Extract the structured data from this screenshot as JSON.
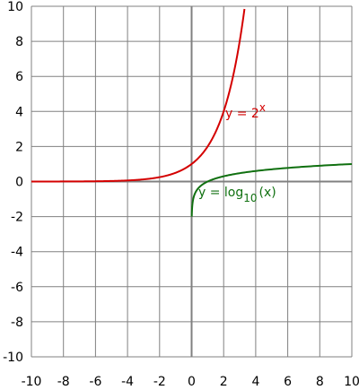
{
  "chart_data": {
    "type": "line",
    "title": "",
    "xlabel": "",
    "ylabel": "",
    "xlim": [
      -10,
      10
    ],
    "ylim": [
      -10,
      10
    ],
    "grid": true,
    "grid_color": "#808080",
    "axis_color": "#808080",
    "x_ticks": [
      -10,
      -8,
      -6,
      -4,
      -2,
      0,
      2,
      4,
      6,
      8,
      10
    ],
    "y_ticks": [
      -10,
      -8,
      -6,
      -4,
      -2,
      0,
      2,
      4,
      6,
      8,
      10
    ],
    "x_tick_labels": [
      "-10",
      "-8",
      "-6",
      "-4",
      "-2",
      "0",
      "2",
      "4",
      "6",
      "8",
      "10"
    ],
    "y_tick_labels": [
      "-10",
      "-8",
      "-6",
      "-4",
      "-2",
      "0",
      "2",
      "4",
      "6",
      "8",
      "10"
    ],
    "series": [
      {
        "color": "#d40000",
        "function": "2^x",
        "x": [
          -10,
          -8,
          -6,
          -4,
          -2,
          -1,
          0,
          1,
          2,
          3,
          3.3
        ],
        "y": [
          0.001,
          0.004,
          0.016,
          0.0625,
          0.25,
          0.5,
          1,
          2,
          4,
          8,
          9.85
        ],
        "annotation": {
          "base": "y = 2",
          "superscript": "x",
          "at": [
            2.1,
            4.0
          ]
        }
      },
      {
        "color": "#107010",
        "function": "log10(x)",
        "x": [
          0.01,
          0.03,
          0.1,
          0.3,
          1,
          2,
          3,
          4,
          6,
          8,
          10
        ],
        "y": [
          -2,
          -1.52,
          -1,
          -0.52,
          0,
          0.3,
          0.48,
          0.6,
          0.78,
          0.9,
          1
        ],
        "annotation": {
          "base": "y = log",
          "subscript": "10",
          "suffix": "(x)",
          "at": [
            0.5,
            -0.7
          ]
        }
      }
    ]
  }
}
